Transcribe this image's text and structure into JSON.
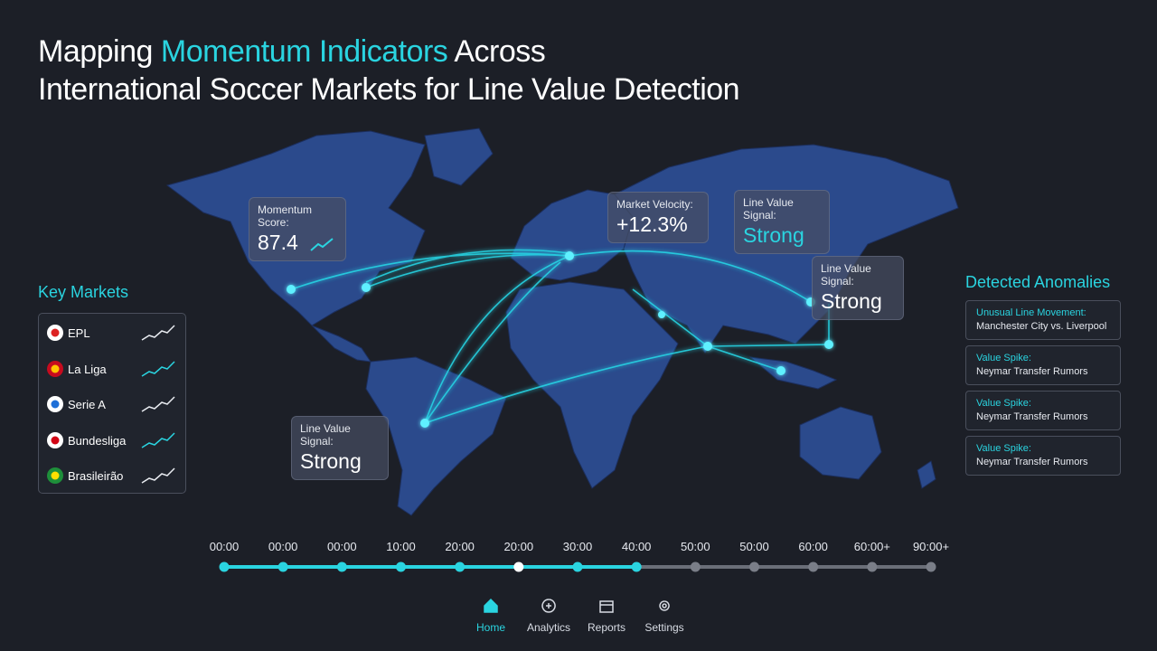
{
  "header": {
    "title": {
      "before": "Mapping",
      "highlight": "Momentum Indicators",
      "after": "Across",
      "line2": "International Soccer Markets for Line Value Detection"
    }
  },
  "callouts": [
    {
      "label": "Momentum Score:",
      "value": "87.4"
    },
    {
      "label": "Market Velocity:",
      "value": "+12.3%"
    },
    {
      "label": "Line Value Signal:",
      "value": "Strong"
    },
    {
      "label": "Line Value Signal:",
      "value": "Strong"
    },
    {
      "label": "Line Value Signal:",
      "value": "Strong"
    }
  ],
  "key_markets": {
    "title": "Key Markets",
    "items": [
      "EPL",
      "La Liga",
      "Serie A",
      "Bundesliga",
      "Brasileirão"
    ]
  },
  "anomalies": {
    "title": "Detected Anomalies",
    "items": [
      {
        "title": "Unusual Line Movement:",
        "detail": "Manchester City vs. Liverpool"
      },
      {
        "title": "Value Spike:",
        "detail": "Neymar Transfer Rumors"
      },
      {
        "title": "Value Spike:",
        "detail": "Neymar Transfer Rumors"
      },
      {
        "title": "Value Spike:",
        "detail": "Neymar Transfer Rumors"
      }
    ]
  },
  "timeline": {
    "labels": [
      "00:00",
      "00:00",
      "00:00",
      "10:00",
      "20:00",
      "20:00",
      "30:00",
      "40:00",
      "50:00",
      "50:00",
      "60:00",
      "60:00+",
      "90:00+"
    ]
  },
  "nav": {
    "items": [
      "Home",
      "Analytics",
      "Reports",
      "Settings"
    ]
  }
}
